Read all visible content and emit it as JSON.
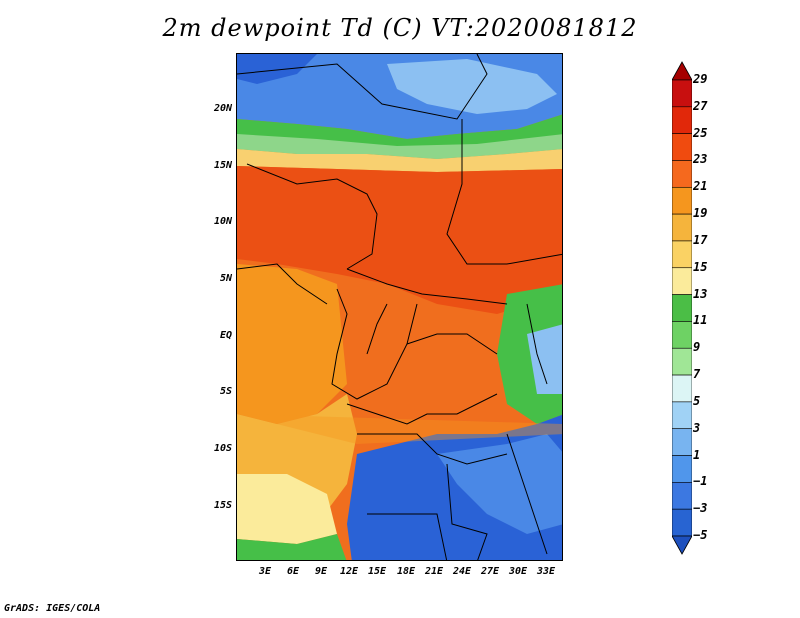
{
  "title": "2m dewpoint Td (C) VT:2020081812",
  "credit": "GrADS: IGES/COLA",
  "y_axis": {
    "ticks": [
      "20N",
      "15N",
      "10N",
      "5N",
      "EQ",
      "5S",
      "10S",
      "15S"
    ]
  },
  "x_axis": {
    "ticks": [
      "3E",
      "6E",
      "9E",
      "12E",
      "15E",
      "18E",
      "21E",
      "24E",
      "27E",
      "30E",
      "33E"
    ]
  },
  "colorbar": {
    "labels": [
      "29",
      "27",
      "25",
      "23",
      "21",
      "19",
      "17",
      "15",
      "13",
      "11",
      "9",
      "7",
      "5",
      "3",
      "1",
      "−1",
      "−3",
      "−5"
    ],
    "colors": [
      "#a50000",
      "#c80f0f",
      "#e1280a",
      "#f04b0f",
      "#f5691e",
      "#f5961e",
      "#f5b43c",
      "#fad264",
      "#fbeb9b",
      "#4bbe46",
      "#6ed264",
      "#a0e696",
      "#dcf5f5",
      "#a0d2f5",
      "#78b4f0",
      "#5096eb",
      "#3c78e1",
      "#2864d2",
      "#1e50be"
    ]
  },
  "palette": {
    "deep_blue": "#2a62d6",
    "blue": "#4a88e6",
    "light_blue": "#8cc0f2",
    "pale_blue": "#c8e6f8",
    "green": "#46bf48",
    "light_green": "#8ed68a",
    "pale_yellow": "#fbeb9b",
    "yellow": "#f8d070",
    "light_orange": "#f5b43c",
    "orange": "#f5961e",
    "dark_orange": "#f06e1e",
    "red_orange": "#eb5014"
  }
}
